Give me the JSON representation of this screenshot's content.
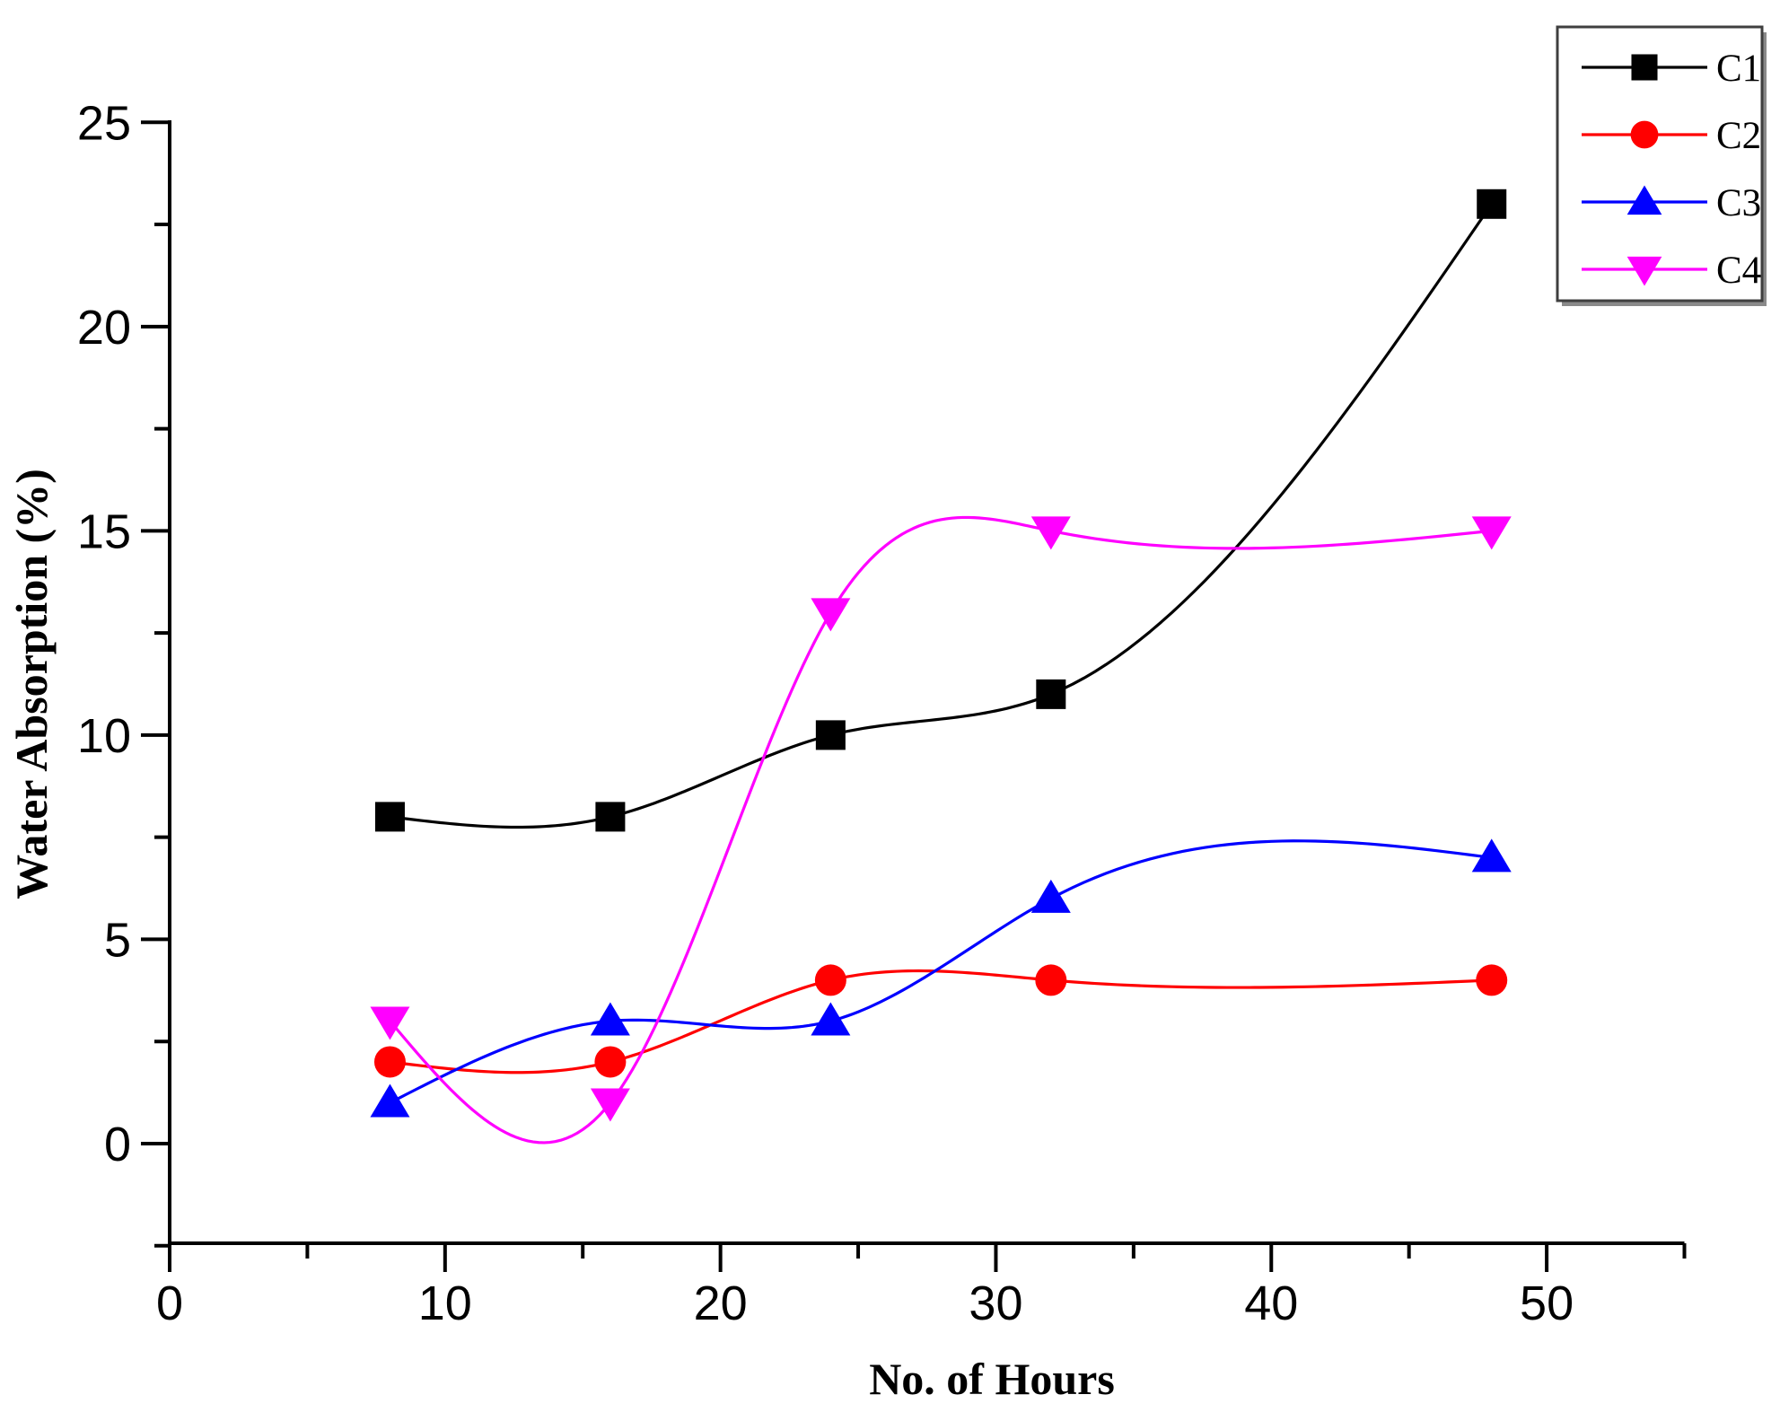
{
  "chart_data": {
    "type": "line",
    "title": "",
    "xlabel": "No. of Hours",
    "ylabel": "Water Absorption (%)",
    "xlim": [
      0,
      55
    ],
    "ylim": [
      -2.44,
      25.05
    ],
    "x_major_ticks": [
      0,
      10,
      20,
      30,
      40,
      50
    ],
    "x_minor_ticks": [
      5,
      15,
      25,
      35,
      45,
      55
    ],
    "y_major_ticks": [
      0,
      5,
      10,
      15,
      20,
      25
    ],
    "y_minor_ticks": [
      -2.5,
      2.5,
      7.5,
      12.5,
      17.5,
      22.5
    ],
    "grid": false,
    "curve": "natural-cubic-spline",
    "legend_position": "top-right",
    "x": [
      8,
      16,
      24,
      32,
      48
    ],
    "series": [
      {
        "name": "C1",
        "marker": "square",
        "color": "#000000",
        "values": [
          8,
          8,
          10,
          11,
          23
        ]
      },
      {
        "name": "C2",
        "marker": "circle",
        "color": "#ff0000",
        "values": [
          2,
          2,
          4,
          4,
          4
        ]
      },
      {
        "name": "C3",
        "marker": "triangle-up",
        "color": "#0000ff",
        "values": [
          1,
          3,
          3,
          6,
          7
        ]
      },
      {
        "name": "C4",
        "marker": "triangle-down",
        "color": "#ff00ff",
        "values": [
          3,
          1,
          13,
          15,
          15
        ]
      }
    ],
    "axis_color": "#000000",
    "legend_border_color": "#3f3f3f",
    "legend_shadow_color": "#8a8a8a",
    "legend_bg_color": "#ffffff"
  }
}
